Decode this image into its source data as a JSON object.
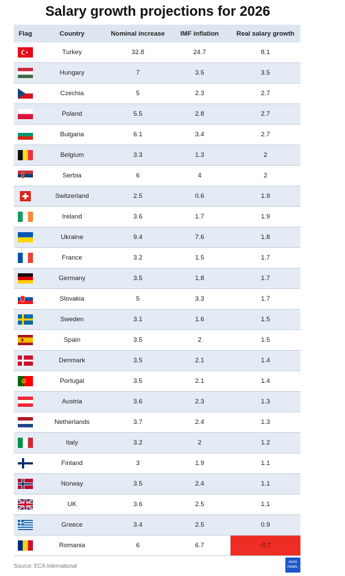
{
  "title": "Salary growth projections for 2026",
  "headers": [
    "Flag",
    "Country",
    "Nominal increase",
    "IMF inflation",
    "Real salary growth"
  ],
  "colors": {
    "header_bg": "#dde5f1",
    "row_alt": "#e5ebf5",
    "negative": "#ee2e24",
    "logo": "#1d57c8"
  },
  "source": "Source: ECA International",
  "logo_text": [
    "euro",
    "news."
  ],
  "chart_data": {
    "type": "table",
    "title": "Salary growth projections for 2026",
    "columns": [
      "Flag",
      "Country",
      "Nominal increase",
      "IMF inflation",
      "Real salary growth"
    ],
    "rows": [
      {
        "flag": "turkey-flag-icon",
        "country": "Turkey",
        "nominal": "32.8",
        "imf": "24.7",
        "real": "8.1"
      },
      {
        "flag": "hungary-flag-icon",
        "country": "Hungary",
        "nominal": "7",
        "imf": "3.5",
        "real": "3.5"
      },
      {
        "flag": "czechia-flag-icon",
        "country": "Czechia",
        "nominal": "5",
        "imf": "2.3",
        "real": "2.7"
      },
      {
        "flag": "poland-flag-icon",
        "country": "Poland",
        "nominal": "5.5",
        "imf": "2.8",
        "real": "2.7"
      },
      {
        "flag": "bulgaria-flag-icon",
        "country": "Bulgaria",
        "nominal": "6.1",
        "imf": "3.4",
        "real": "2.7"
      },
      {
        "flag": "belgium-flag-icon",
        "country": "Belgium",
        "nominal": "3.3",
        "imf": "1.3",
        "real": "2"
      },
      {
        "flag": "serbia-flag-icon",
        "country": "Serbia",
        "nominal": "6",
        "imf": "4",
        "real": "2"
      },
      {
        "flag": "switzerland-flag-icon",
        "country": "Switzerland",
        "nominal": "2.5",
        "imf": "0.6",
        "real": "1.9"
      },
      {
        "flag": "ireland-flag-icon",
        "country": "Ireland",
        "nominal": "3.6",
        "imf": "1.7",
        "real": "1.9"
      },
      {
        "flag": "ukraine-flag-icon",
        "country": "Ukraine",
        "nominal": "9.4",
        "imf": "7.6",
        "real": "1.8"
      },
      {
        "flag": "france-flag-icon",
        "country": "France",
        "nominal": "3.2",
        "imf": "1.5",
        "real": "1.7"
      },
      {
        "flag": "germany-flag-icon",
        "country": "Germany",
        "nominal": "3.5",
        "imf": "1.8",
        "real": "1.7"
      },
      {
        "flag": "slovakia-flag-icon",
        "country": "Slovakia",
        "nominal": "5",
        "imf": "3.3",
        "real": "1.7"
      },
      {
        "flag": "sweden-flag-icon",
        "country": "Sweden",
        "nominal": "3.1",
        "imf": "1.6",
        "real": "1.5"
      },
      {
        "flag": "spain-flag-icon",
        "country": "Spain",
        "nominal": "3.5",
        "imf": "2",
        "real": "1.5"
      },
      {
        "flag": "denmark-flag-icon",
        "country": "Denmark",
        "nominal": "3.5",
        "imf": "2.1",
        "real": "1.4"
      },
      {
        "flag": "portugal-flag-icon",
        "country": "Portugal",
        "nominal": "3.5",
        "imf": "2.1",
        "real": "1.4"
      },
      {
        "flag": "austria-flag-icon",
        "country": "Austria",
        "nominal": "3.6",
        "imf": "2.3",
        "real": "1.3"
      },
      {
        "flag": "netherlands-flag-icon",
        "country": "Netherlands",
        "nominal": "3.7",
        "imf": "2.4",
        "real": "1.3"
      },
      {
        "flag": "italy-flag-icon",
        "country": "Italy",
        "nominal": "3.2",
        "imf": "2",
        "real": "1.2"
      },
      {
        "flag": "finland-flag-icon",
        "country": "Finland",
        "nominal": "3",
        "imf": "1.9",
        "real": "1.1"
      },
      {
        "flag": "norway-flag-icon",
        "country": "Norway",
        "nominal": "3.5",
        "imf": "2.4",
        "real": "1.1"
      },
      {
        "flag": "uk-flag-icon",
        "country": "UK",
        "nominal": "3.6",
        "imf": "2.5",
        "real": "1.1"
      },
      {
        "flag": "greece-flag-icon",
        "country": "Greece",
        "nominal": "3.4",
        "imf": "2.5",
        "real": "0.9"
      },
      {
        "flag": "romania-flag-icon",
        "country": "Romania",
        "nominal": "6",
        "imf": "6.7",
        "real": "-0.7",
        "highlight": "negative"
      }
    ]
  }
}
